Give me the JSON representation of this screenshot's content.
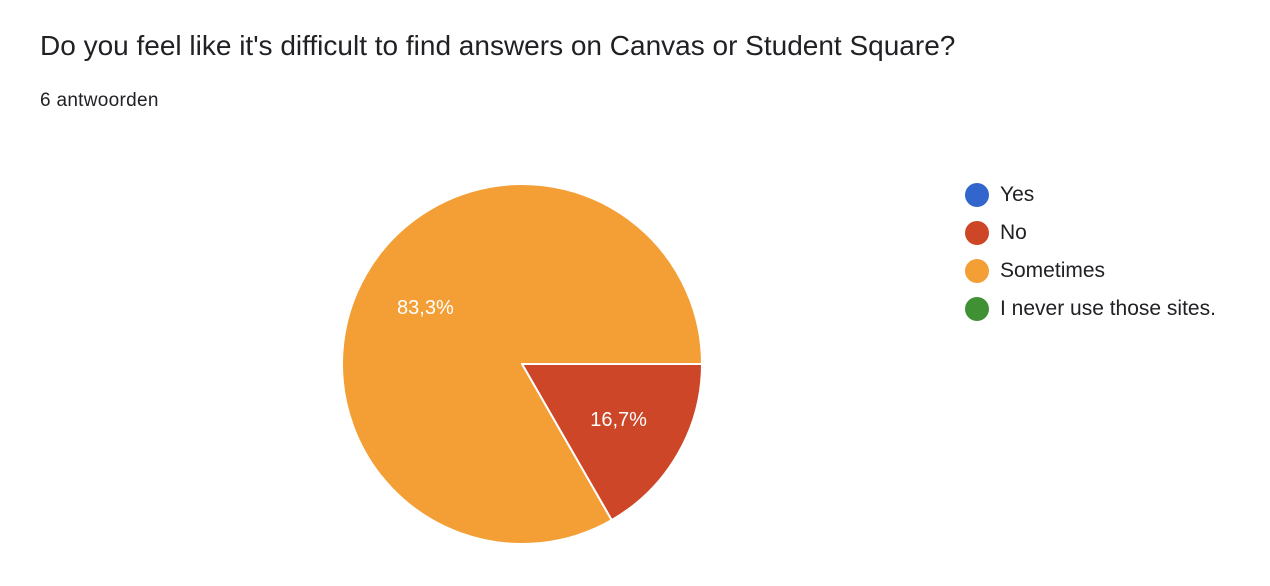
{
  "header": {
    "title": "Do you feel like it's difficult to find answers on Canvas or Student Square?",
    "response_count": "6 antwoorden"
  },
  "chart_data": {
    "type": "pie",
    "categories": [
      "Yes",
      "No",
      "Sometimes",
      "I never use those sites."
    ],
    "values": [
      0,
      16.7,
      83.3,
      0
    ],
    "value_labels": [
      "",
      "16,7%",
      "83,3%",
      ""
    ],
    "colors": [
      "#3366cc",
      "#cc4627",
      "#f39f36",
      "#3f9133"
    ],
    "legend_position": "right"
  }
}
